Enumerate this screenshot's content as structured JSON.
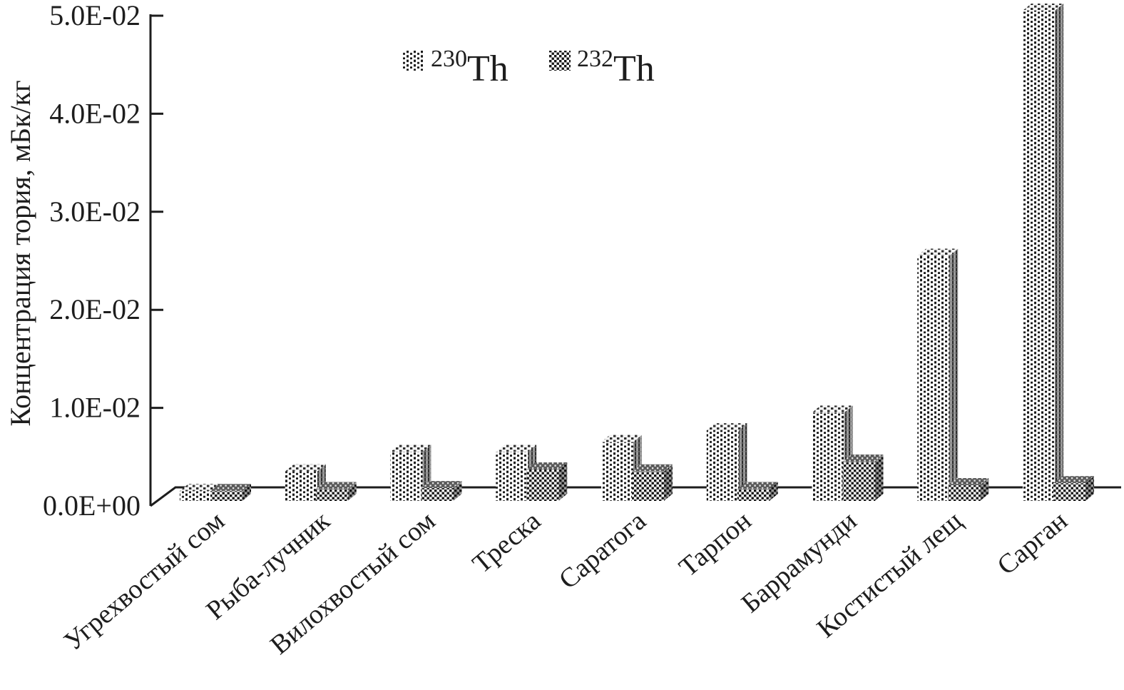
{
  "colors": {
    "ink": "#1d1d1d",
    "background": "#ffffff",
    "pattern_dark": "#1a1a1a",
    "side_gray_230": "#9b9b9b",
    "side_gray_232": "#9a9a9a",
    "top_gray_232": "#5a5a5a"
  },
  "legend": {
    "position": "top-center",
    "items": [
      {
        "mass_number": "230",
        "element": "Th",
        "pattern": "dotted-columns"
      },
      {
        "mass_number": "232",
        "element": "Th",
        "pattern": "checker-dots"
      }
    ]
  },
  "chart_data": {
    "type": "bar",
    "projection": "3d",
    "title": "",
    "xlabel": "",
    "ylabel": "Концентрация тория, мБк/кг",
    "ylim": [
      0,
      0.05
    ],
    "grid": false,
    "legend_position": "top-center",
    "ytick_values": [
      0,
      0.01,
      0.02,
      0.03,
      0.04,
      0.05
    ],
    "ytick_labels": [
      "0.0E+00",
      "1.0E-02",
      "2.0E-02",
      "3.0E-02",
      "4.0E-02",
      "5.0E-02"
    ],
    "categories": [
      "Угрехвостый сом",
      "Рыба-лучник",
      "Вилохвостый сом",
      "Треска",
      "Саратога",
      "Тарпон",
      "Баррамунди",
      "Костистый лещ",
      "Сарган"
    ],
    "series": [
      {
        "name": "230Th",
        "mass_number": "230",
        "element": "Th",
        "values": [
          0.001,
          0.003,
          0.005,
          0.005,
          0.006,
          0.0072,
          0.009,
          0.025,
          0.05
        ]
      },
      {
        "name": "232Th",
        "mass_number": "232",
        "element": "Th",
        "values": [
          0.001,
          0.0012,
          0.0013,
          0.0032,
          0.003,
          0.0012,
          0.004,
          0.0016,
          0.0018
        ]
      }
    ]
  }
}
